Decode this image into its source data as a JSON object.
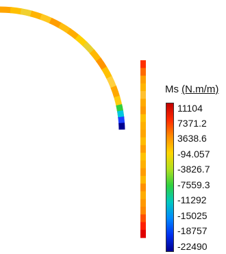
{
  "legend": {
    "quantity": "Ms",
    "unit": "(N.m/m)",
    "ticks": [
      "11104",
      "7371.2",
      "3638.6",
      "-94.057",
      "-3826.7",
      "-7559.3",
      "-11292",
      "-15025",
      "-18757",
      "-22490"
    ],
    "colors": [
      "#c00000",
      "#ff2a00",
      "#ff8c00",
      "#ffd400",
      "#b0e020",
      "#2fd040",
      "#00c8c0",
      "#0088ff",
      "#0030f0",
      "#000090"
    ]
  },
  "shell": {
    "arc_colors": [
      "#ffa500",
      "#ffc000",
      "#f0d030",
      "#ffb300",
      "#ffc820",
      "#ff9d00",
      "#ffbd10",
      "#ffad00",
      "#ffd000",
      "#e8d030",
      "#ffb800",
      "#ff9400",
      "#ffc000",
      "#ffd040",
      "#ffa800",
      "#ffcc10",
      "#ff8a00"
    ],
    "junction_colors": [
      "#30d040",
      "#00c8e0",
      "#1e40ff",
      "#000090"
    ],
    "column_colors": [
      "#ff3000",
      "#ff6a00",
      "#ffa000",
      "#ffb400",
      "#ffc030",
      "#ffaa00",
      "#ff9a00",
      "#ffc000",
      "#ffb000",
      "#ffa500",
      "#ffbb00",
      "#ff9f00",
      "#ffc200",
      "#ffb000",
      "#ff9c00",
      "#ffb800",
      "#ff9000",
      "#ffac00",
      "#ff9800",
      "#ff8800",
      "#ff5000",
      "#ff2000",
      "#e00000"
    ]
  }
}
